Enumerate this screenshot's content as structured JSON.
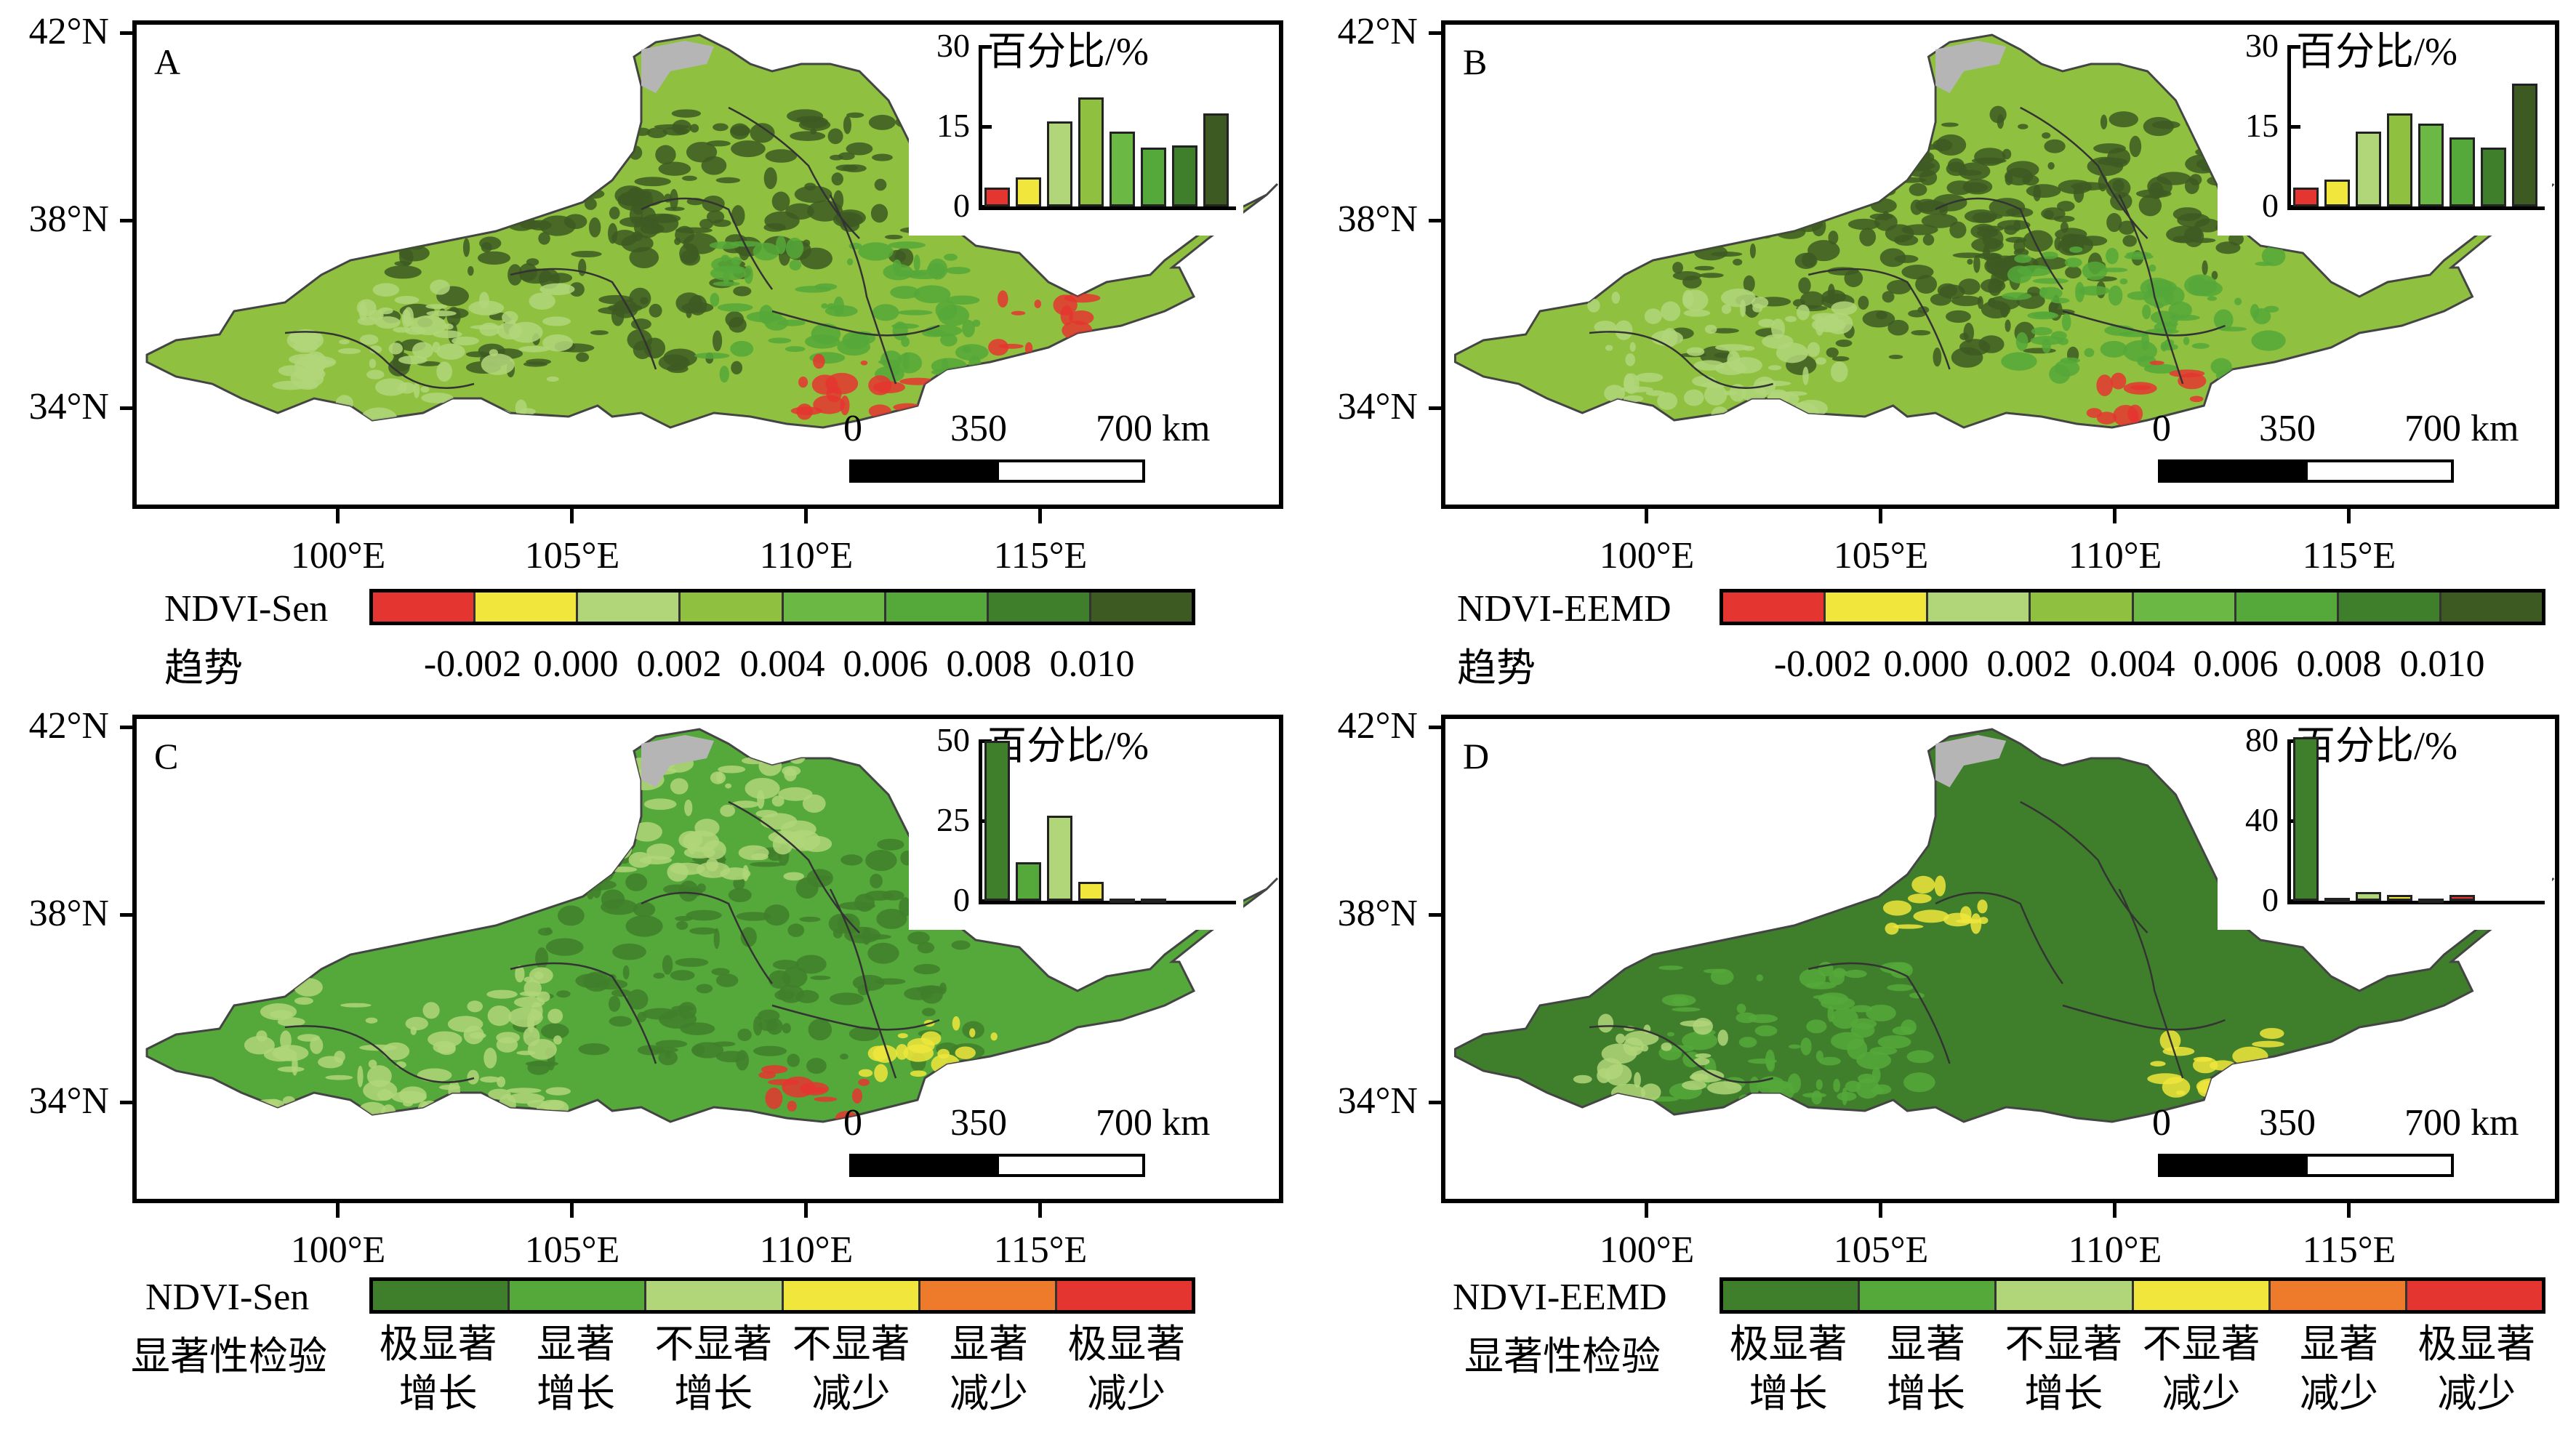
{
  "colors": {
    "dark_green": "#3d5a22",
    "green2": "#3f7f2c",
    "green3": "#55a83a",
    "green4": "#6bb845",
    "green5": "#8fc040",
    "light_green": "#b1d67a",
    "yellow": "#f0e63c",
    "orange": "#ee7a2c",
    "red": "#e53530",
    "gray": "#b5b5b5"
  },
  "axes": {
    "lat_labels": [
      "42°N",
      "38°N",
      "34°N"
    ],
    "lon_labels": [
      "100°E",
      "105°E",
      "110°E",
      "115°E"
    ]
  },
  "scalebar": {
    "labels": [
      "0",
      "350",
      "700 km"
    ]
  },
  "panels": [
    {
      "letter": "A",
      "inset": {
        "title": "百分比/%",
        "yticks": [
          "30",
          "15",
          "0"
        ],
        "ymax": 30,
        "values": [
          3.5,
          5.5,
          16,
          20.5,
          14,
          11,
          11.5,
          17.5
        ],
        "colors": [
          "#e53530",
          "#f0e63c",
          "#b1d67a",
          "#8fc040",
          "#6bb845",
          "#55a83a",
          "#3f7f2c",
          "#3d5a22"
        ]
      },
      "legend": {
        "name": "NDVI-Sen",
        "title": "趋势",
        "colors": [
          "#e53530",
          "#f0e63c",
          "#b1d67a",
          "#8fc040",
          "#6bb845",
          "#55a83a",
          "#3f7f2c",
          "#3d5a22"
        ],
        "ticks": [
          "-0.002",
          "0.000",
          "0.002",
          "0.004",
          "0.006",
          "0.008",
          "0.010"
        ]
      }
    },
    {
      "letter": "B",
      "inset": {
        "title": "百分比/%",
        "yticks": [
          "30",
          "15",
          "0"
        ],
        "ymax": 30,
        "values": [
          3.5,
          5,
          14,
          17.5,
          15.5,
          13,
          11,
          23
        ],
        "colors": [
          "#e53530",
          "#f0e63c",
          "#b1d67a",
          "#8fc040",
          "#6bb845",
          "#55a83a",
          "#3f7f2c",
          "#3d5a22"
        ]
      },
      "legend": {
        "name": "NDVI-EEMD",
        "title": "趋势",
        "colors": [
          "#e53530",
          "#f0e63c",
          "#b1d67a",
          "#8fc040",
          "#6bb845",
          "#55a83a",
          "#3f7f2c",
          "#3d5a22"
        ],
        "ticks": [
          "-0.002",
          "0.000",
          "0.002",
          "0.004",
          "0.006",
          "0.008",
          "0.010"
        ]
      }
    },
    {
      "letter": "C",
      "inset": {
        "title": "百分比/%",
        "yticks": [
          "50",
          "25",
          "0"
        ],
        "ymax": 50,
        "values": [
          50,
          12,
          26.5,
          6,
          0.5,
          0.5
        ],
        "colors": [
          "#3f7f2c",
          "#55a83a",
          "#b1d67a",
          "#f0e63c",
          "#ee7a2c",
          "#e53530"
        ]
      },
      "legend": {
        "name": "NDVI-Sen",
        "title": "显著性检验",
        "colors": [
          "#3f7f2c",
          "#55a83a",
          "#b1d67a",
          "#f0e63c",
          "#ee7a2c",
          "#e53530"
        ],
        "categories": [
          [
            "极显著",
            "增长"
          ],
          [
            "显著",
            "增长"
          ],
          [
            "不显著",
            "增长"
          ],
          [
            "不显著",
            "减少"
          ],
          [
            "显著",
            "减少"
          ],
          [
            "极显著",
            "减少"
          ]
        ]
      }
    },
    {
      "letter": "D",
      "inset": {
        "title": "百分比/%",
        "yticks": [
          "80",
          "40",
          "0"
        ],
        "ymax": 80,
        "values": [
          82,
          1.5,
          4.5,
          3,
          0.5,
          3
        ],
        "colors": [
          "#3f7f2c",
          "#55a83a",
          "#b1d67a",
          "#f0e63c",
          "#ee7a2c",
          "#e53530"
        ]
      },
      "legend": {
        "name": "NDVI-EEMD",
        "title": "显著性检验",
        "colors": [
          "#3f7f2c",
          "#55a83a",
          "#b1d67a",
          "#f0e63c",
          "#ee7a2c",
          "#e53530"
        ],
        "categories": [
          [
            "极显著",
            "增长"
          ],
          [
            "显著",
            "增长"
          ],
          [
            "不显著",
            "增长"
          ],
          [
            "不显著",
            "减少"
          ],
          [
            "显著",
            "减少"
          ],
          [
            "极显著",
            "减少"
          ]
        ]
      }
    }
  ]
}
